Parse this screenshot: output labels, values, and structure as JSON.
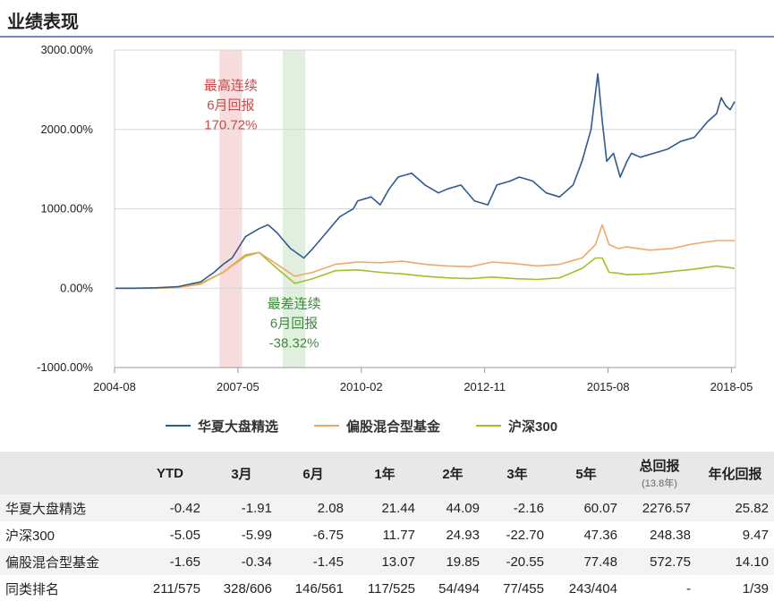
{
  "header": {
    "title": "业绩表现"
  },
  "chart_data": {
    "type": "line",
    "ylim": [
      -1000,
      3000
    ],
    "y_ticks": [
      {
        "value": 3000,
        "label": "3000.00%"
      },
      {
        "value": 2000,
        "label": "2000.00%"
      },
      {
        "value": 1000,
        "label": "1000.00%"
      },
      {
        "value": 0,
        "label": "0.00%"
      },
      {
        "value": -1000,
        "label": "-1000.00%"
      }
    ],
    "x_ticks": [
      {
        "value": 2004.58,
        "label": "2004-08"
      },
      {
        "value": 2007.33,
        "label": "2007-05"
      },
      {
        "value": 2010.08,
        "label": "2010-02"
      },
      {
        "value": 2012.83,
        "label": "2012-11"
      },
      {
        "value": 2015.58,
        "label": "2015-08"
      },
      {
        "value": 2018.33,
        "label": "2018-05"
      }
    ],
    "xlim": [
      2004.58,
      2018.42
    ],
    "series": [
      {
        "name": "华夏大盘精选",
        "color": "#2e5a8e",
        "x": [
          2004.6,
          2005.0,
          2005.5,
          2006.0,
          2006.5,
          2006.8,
          2007.0,
          2007.2,
          2007.5,
          2007.8,
          2008.0,
          2008.2,
          2008.5,
          2008.8,
          2009.0,
          2009.3,
          2009.6,
          2009.9,
          2010.0,
          2010.3,
          2010.5,
          2010.7,
          2010.9,
          2011.2,
          2011.5,
          2011.8,
          2012.0,
          2012.3,
          2012.6,
          2012.9,
          2013.1,
          2013.4,
          2013.6,
          2013.9,
          2014.2,
          2014.5,
          2014.8,
          2015.0,
          2015.2,
          2015.35,
          2015.45,
          2015.55,
          2015.7,
          2015.85,
          2016.0,
          2016.1,
          2016.3,
          2016.6,
          2016.9,
          2017.2,
          2017.5,
          2017.8,
          2018.0,
          2018.1,
          2018.2,
          2018.3,
          2018.4
        ],
        "y": [
          0,
          0,
          5,
          20,
          80,
          200,
          300,
          380,
          650,
          750,
          800,
          700,
          500,
          380,
          500,
          700,
          900,
          1000,
          1100,
          1150,
          1050,
          1250,
          1400,
          1450,
          1300,
          1200,
          1250,
          1300,
          1100,
          1050,
          1300,
          1350,
          1400,
          1350,
          1200,
          1150,
          1300,
          1600,
          2000,
          2700,
          2100,
          1600,
          1700,
          1400,
          1600,
          1700,
          1650,
          1700,
          1750,
          1850,
          1900,
          2100,
          2200,
          2400,
          2300,
          2250,
          2350
        ]
      },
      {
        "name": "偏股混合型基金",
        "color": "#f0a868",
        "x": [
          2004.6,
          2005.5,
          2006.0,
          2006.5,
          2007.0,
          2007.5,
          2007.8,
          2008.2,
          2008.6,
          2009.0,
          2009.5,
          2010.0,
          2010.5,
          2011.0,
          2011.5,
          2012.0,
          2012.5,
          2013.0,
          2013.5,
          2014.0,
          2014.5,
          2015.0,
          2015.3,
          2015.45,
          2015.6,
          2015.8,
          2016.0,
          2016.5,
          2017.0,
          2017.5,
          2018.0,
          2018.4
        ],
        "y": [
          0,
          0,
          10,
          50,
          200,
          400,
          450,
          300,
          150,
          200,
          300,
          330,
          320,
          340,
          300,
          280,
          270,
          330,
          310,
          280,
          300,
          380,
          550,
          800,
          550,
          500,
          520,
          480,
          500,
          560,
          600,
          600
        ]
      },
      {
        "name": "沪深300",
        "color": "#a2c02c",
        "x": [
          2004.6,
          2005.5,
          2006.0,
          2006.5,
          2007.0,
          2007.5,
          2007.8,
          2008.2,
          2008.6,
          2009.0,
          2009.5,
          2010.0,
          2010.5,
          2011.0,
          2011.5,
          2012.0,
          2012.5,
          2013.0,
          2013.5,
          2014.0,
          2014.5,
          2015.0,
          2015.3,
          2015.45,
          2015.6,
          2015.8,
          2016.0,
          2016.5,
          2017.0,
          2017.5,
          2018.0,
          2018.4
        ],
        "y": [
          0,
          0,
          10,
          60,
          200,
          420,
          450,
          250,
          60,
          120,
          220,
          230,
          200,
          180,
          150,
          130,
          120,
          140,
          120,
          110,
          130,
          250,
          380,
          380,
          200,
          190,
          170,
          180,
          210,
          240,
          280,
          250
        ]
      }
    ],
    "bands": [
      {
        "x0": 2006.92,
        "x1": 2007.42,
        "color": "#e69a9a",
        "label_lines": [
          "最高连续",
          "6月回报",
          "170.72%"
        ],
        "label_color": "#c94b4b",
        "label_y": 2500,
        "label_x": 2007.17
      },
      {
        "x0": 2008.33,
        "x1": 2008.83,
        "color": "#a5d2a0",
        "label_lines": [
          "最差连续",
          "6月回报",
          "-38.32%"
        ],
        "label_color": "#3e8b3e",
        "label_y": -250,
        "label_x": 2008.58
      }
    ]
  },
  "table": {
    "headers": [
      {
        "label": "",
        "sub": ""
      },
      {
        "label": "YTD",
        "sub": ""
      },
      {
        "label": "3月",
        "sub": ""
      },
      {
        "label": "6月",
        "sub": ""
      },
      {
        "label": "1年",
        "sub": ""
      },
      {
        "label": "2年",
        "sub": ""
      },
      {
        "label": "3年",
        "sub": ""
      },
      {
        "label": "5年",
        "sub": ""
      },
      {
        "label": "总回报",
        "sub": "(13.8年)"
      },
      {
        "label": "年化回报",
        "sub": ""
      }
    ],
    "rows": [
      {
        "name": "华夏大盘精选",
        "values": [
          "-0.42",
          "-1.91",
          "2.08",
          "21.44",
          "44.09",
          "-2.16",
          "60.07",
          "2276.57",
          "25.82"
        ]
      },
      {
        "name": "沪深300",
        "values": [
          "-5.05",
          "-5.99",
          "-6.75",
          "11.77",
          "24.93",
          "-22.70",
          "47.36",
          "248.38",
          "9.47"
        ]
      },
      {
        "name": "偏股混合型基金",
        "values": [
          "-1.65",
          "-0.34",
          "-1.45",
          "13.07",
          "19.85",
          "-20.55",
          "77.48",
          "572.75",
          "14.10"
        ]
      },
      {
        "name": "同类排名",
        "values": [
          "211/575",
          "328/606",
          "146/561",
          "117/525",
          "54/494",
          "77/455",
          "243/404",
          "-",
          "1/39"
        ]
      }
    ]
  }
}
